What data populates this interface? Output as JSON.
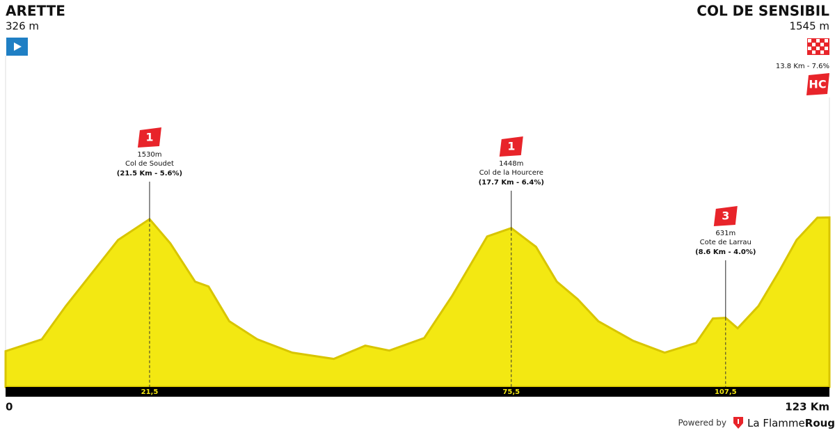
{
  "start": {
    "name": "ARETTE",
    "elevation": "326 m"
  },
  "finish": {
    "name": "COL DE SENSIBIL",
    "elevation": "1545 m",
    "detail": "13.8 Km - 7.6%",
    "category": "HC"
  },
  "footer": {
    "powered": "Powered by",
    "brand_a": "La Flamme",
    "brand_b": "Rouge"
  },
  "chart_data": {
    "type": "area",
    "color": "#f3e812",
    "edge_color": "#d8c500",
    "x": [
      0,
      5.4,
      9.0,
      12.7,
      16.8,
      21.5,
      24.6,
      28.3,
      30.3,
      33.4,
      37.6,
      42.8,
      49.0,
      53.7,
      57.3,
      62.5,
      66.7,
      71.9,
      75.5,
      79.2,
      82.3,
      85.4,
      88.5,
      93.7,
      98.4,
      103.1,
      105.6,
      107.5,
      109.3,
      112.4,
      115.5,
      118.1,
      121.2,
      123
    ],
    "values": [
      326,
      434,
      738,
      1023,
      1340,
      1530,
      1309,
      960,
      916,
      599,
      434,
      313,
      256,
      377,
      332,
      446,
      833,
      1372,
      1448,
      1277,
      960,
      801,
      599,
      421,
      313,
      402,
      624,
      630,
      535,
      738,
      1055,
      1340,
      1543,
      1545
    ],
    "xlim": [
      0,
      123
    ],
    "ylim": [
      0,
      1700
    ],
    "end_label": "123 Km",
    "xticks": [
      {
        "value": 21.5,
        "label": "21,5"
      },
      {
        "value": 75.5,
        "label": "75,5"
      },
      {
        "value": 107.5,
        "label": "107,5"
      }
    ],
    "climbs": [
      {
        "category": "1",
        "elevation": "1530m",
        "name": "Col de Soudet",
        "detail": "(21.5 Km - 5.6%)"
      },
      {
        "category": "1",
        "elevation": "1448m",
        "name": "Col de la Hourcere",
        "detail": "(17.7 Km - 6.4%)"
      },
      {
        "category": "3",
        "elevation": "631m",
        "name": "Cote de Larrau",
        "detail": "(8.6 Km - 4.0%)"
      }
    ]
  }
}
